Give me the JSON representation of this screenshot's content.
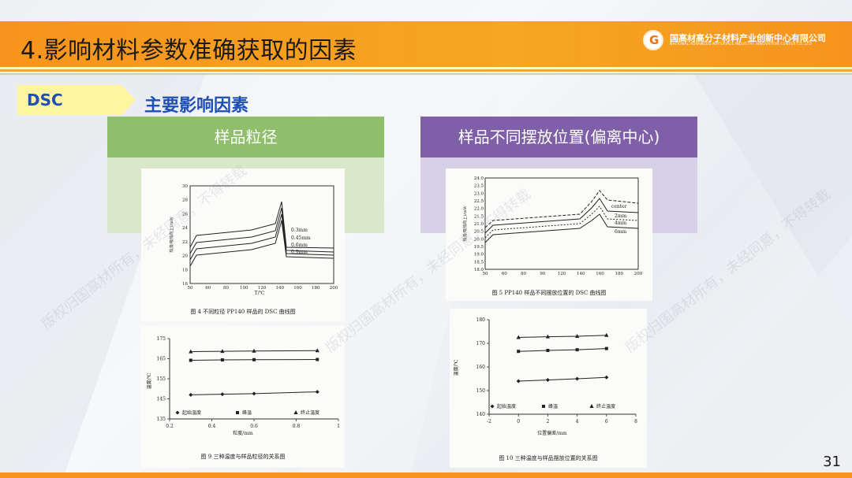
{
  "title": "4.影响材料参数准确获取的因素",
  "logo": {
    "mark": "G",
    "cn": "国高材高分子材料产业创新中心有限公司",
    "en": "NATIONAL ADVANCED MATERIALS INDUSTRY INNOVATION CENTER CO.,LTD"
  },
  "tag": "DSC",
  "subtitle": "主要影响因素",
  "left_box_title": "样品粒径",
  "right_box_title": "样品不同摆放位置(偏离中心)",
  "page_number": "31",
  "watermark": "版权归国高材所有，未经同意，不得转载",
  "colors": {
    "orange": "#f7941d",
    "green": "#8fbf6a",
    "purple": "#7f60a8",
    "blue": "#1f4fb5"
  },
  "fig4": {
    "caption": "图 4   不同粒径 PP140 样品的 DSC 曲线图",
    "xlabel": "T/℃",
    "ylabel": "热流(吸热向上)/mW",
    "xticks": [
      "50",
      "60",
      "80",
      "100",
      "120",
      "140",
      "160",
      "180",
      "200"
    ],
    "yticks": [
      "16",
      "18",
      "20",
      "22",
      "24",
      "26",
      "28",
      "30"
    ],
    "labels": [
      "0.3mm",
      "0.45mm",
      "0.6mm",
      "0.9mm"
    ]
  },
  "fig5": {
    "caption": "图 5   PP140 样品不同摆放位置的 DSC 曲线图",
    "yticks": [
      "18.0",
      "18.5",
      "19.0",
      "19.5",
      "20.0",
      "20.5",
      "21.0",
      "21.5",
      "22.0",
      "22.5",
      "23.0",
      "23.5",
      "24.0"
    ],
    "xticks": [
      "50",
      "60",
      "80",
      "90",
      "120",
      "140",
      "160",
      "180",
      "200"
    ],
    "ylabel": "热流(吸热向上)/mW",
    "labels": [
      "center",
      "2mm",
      "4mm",
      "6mm"
    ]
  },
  "fig9": {
    "caption": "图 9   三种温度与样品粒径的关系图",
    "xlabel": "粒度/mm",
    "ylabel": "温度/℃",
    "xticks": [
      "0.2",
      "0.4",
      "0.6",
      "0.8",
      "1"
    ],
    "yticks": [
      "135",
      "145",
      "155",
      "165",
      "175"
    ],
    "legend": [
      "起始温度",
      "峰温",
      "终止温度"
    ],
    "chart_data": {
      "type": "line",
      "x": [
        0.3,
        0.45,
        0.6,
        0.9
      ],
      "series": [
        {
          "name": "起始温度",
          "values": [
            147.0,
            147.3,
            147.6,
            148.5
          ]
        },
        {
          "name": "峰温",
          "values": [
            164.2,
            164.4,
            164.5,
            164.6
          ]
        },
        {
          "name": "终止温度",
          "values": [
            168.5,
            168.7,
            168.8,
            169.0
          ]
        }
      ],
      "xlim": [
        0.2,
        1.0
      ],
      "ylim": [
        135,
        175
      ]
    }
  },
  "fig10": {
    "caption": "图 10   三种温度与样品摆放位置的关系图",
    "xlabel": "位置偏差/mm",
    "ylabel": "温度/℃",
    "xticks": [
      "-2",
      "0",
      "2",
      "4",
      "6",
      "8"
    ],
    "yticks": [
      "140",
      "150",
      "160",
      "170",
      "180"
    ],
    "legend": [
      "起始温度",
      "峰温",
      "终止温度"
    ],
    "chart_data": {
      "type": "line",
      "x": [
        0,
        2,
        4,
        6
      ],
      "series": [
        {
          "name": "起始温度",
          "values": [
            154.0,
            154.5,
            155.0,
            155.6
          ]
        },
        {
          "name": "峰温",
          "values": [
            166.6,
            167.0,
            167.3,
            167.8
          ]
        },
        {
          "name": "终止温度",
          "values": [
            172.5,
            172.8,
            173.0,
            173.4
          ]
        }
      ],
      "xlim": [
        -2,
        8
      ],
      "ylim": [
        140,
        180
      ]
    }
  }
}
